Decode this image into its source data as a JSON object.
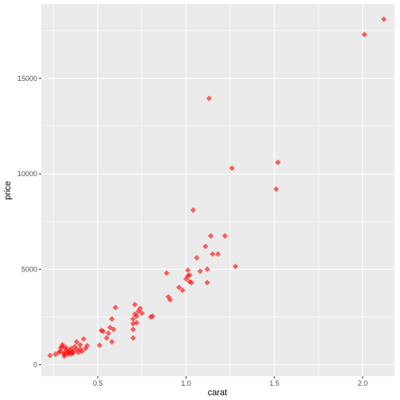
{
  "chart_data": {
    "type": "scatter",
    "title": "",
    "xlabel": "carat",
    "ylabel": "price",
    "xlim": [
      0.18,
      2.18
    ],
    "ylim": [
      -600,
      18900
    ],
    "x_ticks": [
      0.5,
      1.0,
      1.5,
      2.0
    ],
    "x_tick_labels": [
      "0.5",
      "1.0",
      "1.5",
      "2.0"
    ],
    "y_ticks": [
      0,
      5000,
      10000,
      15000
    ],
    "y_tick_labels": [
      "0",
      "5000",
      "10000",
      "15000"
    ],
    "grid": true,
    "legend": "none",
    "colors": {
      "panel": "#ebebeb",
      "grid": "#ffffff",
      "point": "#ff0000"
    },
    "marker": "diamond",
    "series": [
      {
        "points": [
          [
            0.23,
            480
          ],
          [
            0.26,
            550
          ],
          [
            0.28,
            650
          ],
          [
            0.29,
            700
          ],
          [
            0.29,
            880
          ],
          [
            0.3,
            950
          ],
          [
            0.3,
            1050
          ],
          [
            0.31,
            450
          ],
          [
            0.31,
            550
          ],
          [
            0.31,
            620
          ],
          [
            0.32,
            780
          ],
          [
            0.32,
            900
          ],
          [
            0.33,
            680
          ],
          [
            0.33,
            560
          ],
          [
            0.34,
            600
          ],
          [
            0.34,
            750
          ],
          [
            0.35,
            560
          ],
          [
            0.35,
            850
          ],
          [
            0.36,
            700
          ],
          [
            0.36,
            620
          ],
          [
            0.37,
            950
          ],
          [
            0.38,
            1200
          ],
          [
            0.38,
            800
          ],
          [
            0.39,
            650
          ],
          [
            0.4,
            820
          ],
          [
            0.4,
            1050
          ],
          [
            0.41,
            700
          ],
          [
            0.42,
            1350
          ],
          [
            0.43,
            850
          ],
          [
            0.44,
            1000
          ],
          [
            0.51,
            1020
          ],
          [
            0.52,
            1800
          ],
          [
            0.53,
            1750
          ],
          [
            0.55,
            1400
          ],
          [
            0.56,
            1650
          ],
          [
            0.57,
            1950
          ],
          [
            0.58,
            1200
          ],
          [
            0.58,
            2400
          ],
          [
            0.59,
            1850
          ],
          [
            0.6,
            3000
          ],
          [
            0.7,
            1400
          ],
          [
            0.7,
            1850
          ],
          [
            0.7,
            2150
          ],
          [
            0.7,
            2400
          ],
          [
            0.71,
            2650
          ],
          [
            0.71,
            3150
          ],
          [
            0.72,
            2550
          ],
          [
            0.72,
            2200
          ],
          [
            0.73,
            2800
          ],
          [
            0.74,
            2950
          ],
          [
            0.75,
            2700
          ],
          [
            0.8,
            2500
          ],
          [
            0.81,
            2550
          ],
          [
            0.89,
            4800
          ],
          [
            0.9,
            3550
          ],
          [
            0.91,
            3400
          ],
          [
            0.96,
            4050
          ],
          [
            0.98,
            3900
          ],
          [
            1.0,
            4500
          ],
          [
            1.01,
            4650
          ],
          [
            1.01,
            4950
          ],
          [
            1.02,
            4350
          ],
          [
            1.02,
            4700
          ],
          [
            1.03,
            4300
          ],
          [
            1.04,
            8100
          ],
          [
            1.06,
            5600
          ],
          [
            1.08,
            4900
          ],
          [
            1.11,
            6200
          ],
          [
            1.12,
            5000
          ],
          [
            1.12,
            4300
          ],
          [
            1.13,
            13950
          ],
          [
            1.14,
            6750
          ],
          [
            1.15,
            5800
          ],
          [
            1.18,
            5800
          ],
          [
            1.22,
            6750
          ],
          [
            1.26,
            10300
          ],
          [
            1.28,
            5150
          ],
          [
            1.51,
            9200
          ],
          [
            1.52,
            10600
          ],
          [
            2.01,
            17300
          ],
          [
            2.12,
            18100
          ]
        ]
      }
    ]
  }
}
